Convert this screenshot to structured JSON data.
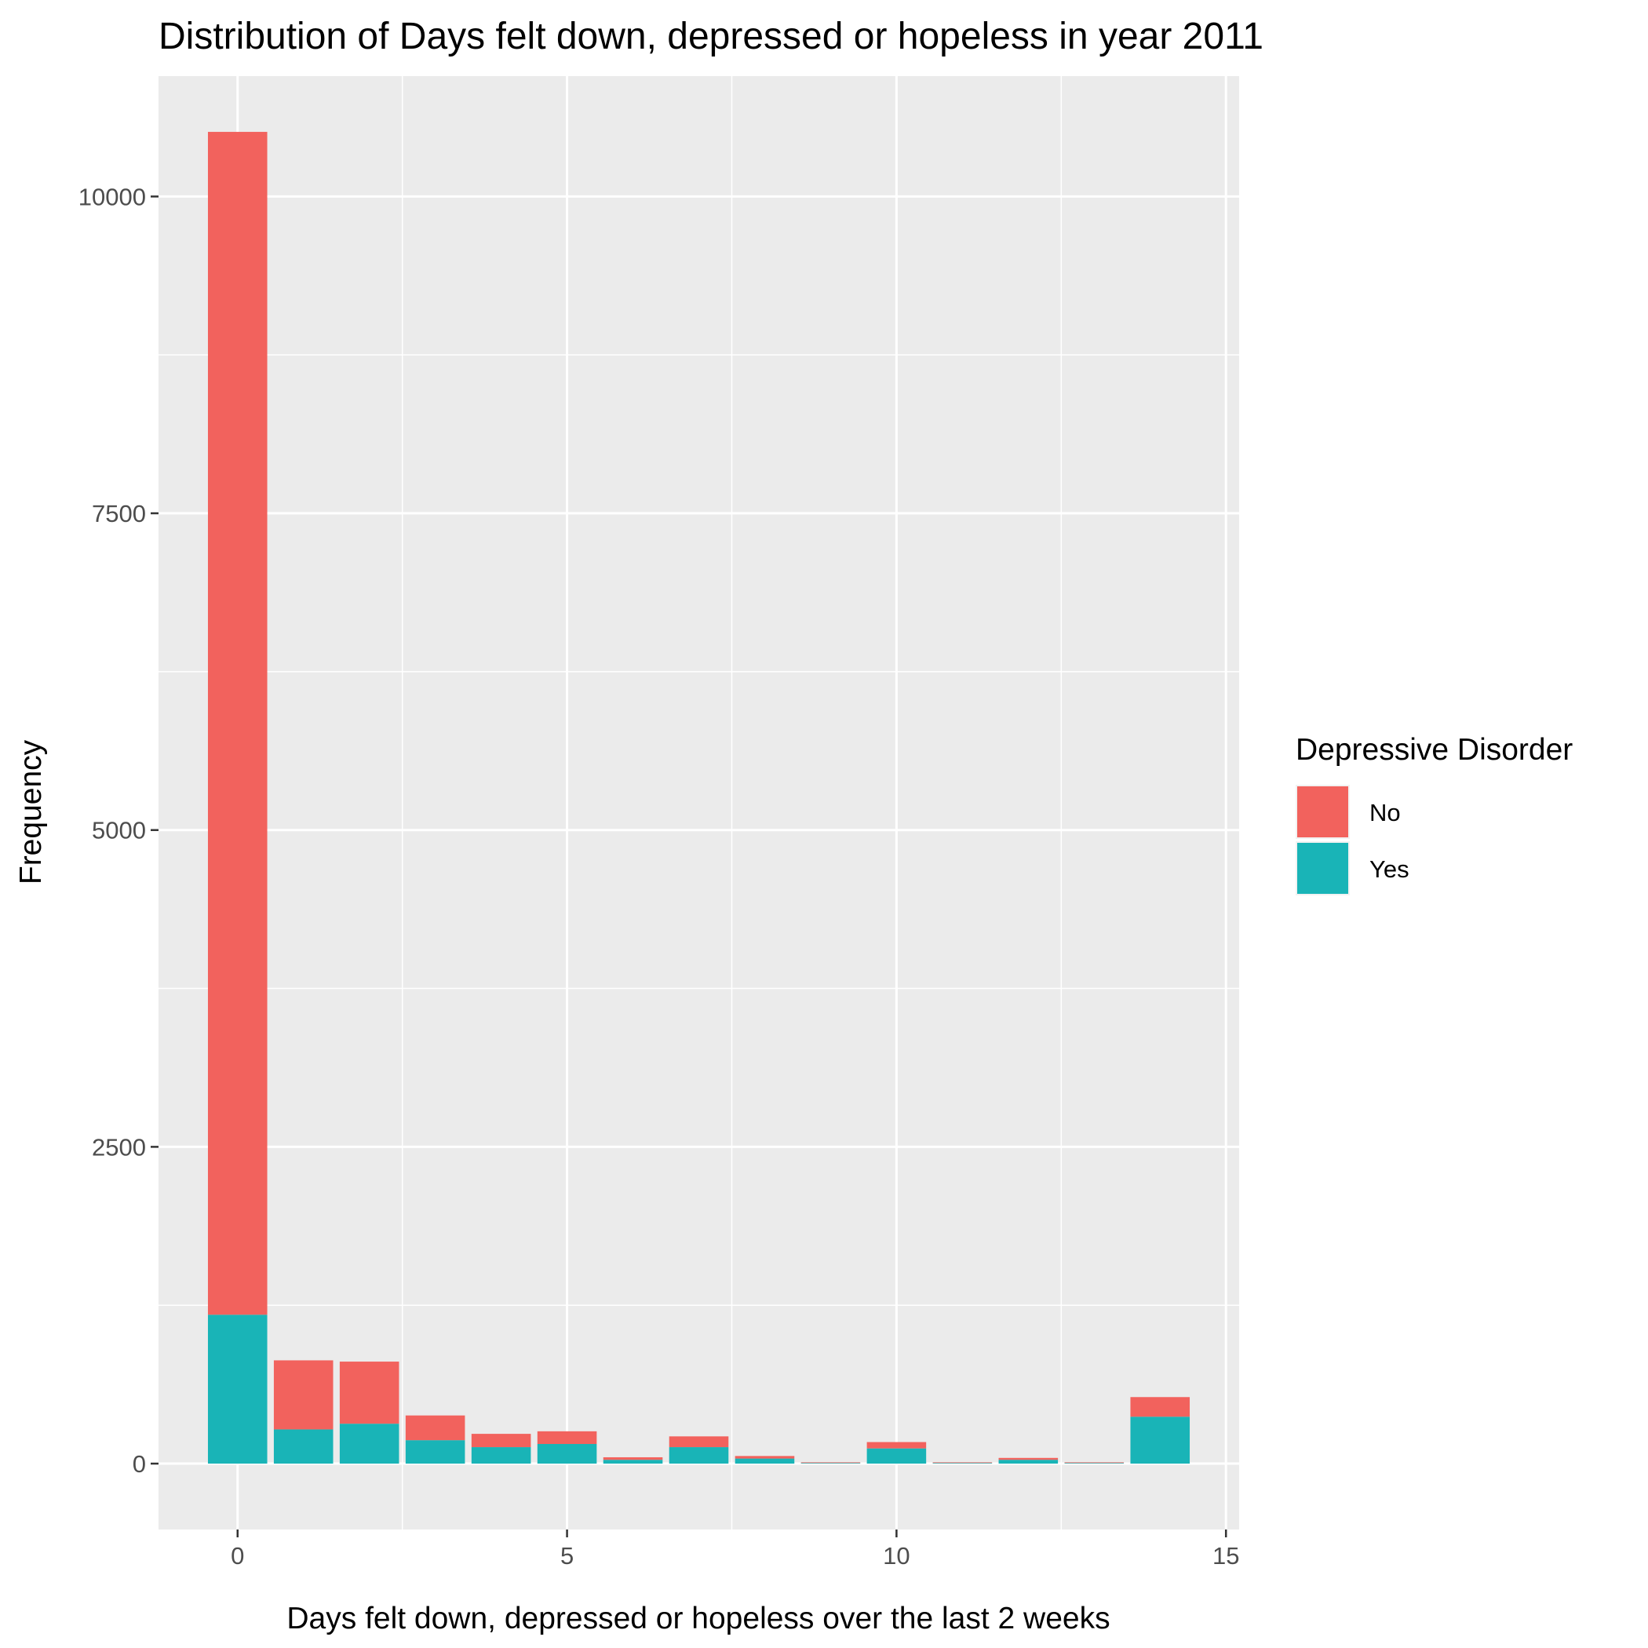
{
  "chart_data": {
    "type": "bar",
    "stacked": true,
    "title": "Distribution of Days felt down, depressed or hopeless in year 2011",
    "xlabel": "Days felt down, depressed or hopeless over the last 2 weeks",
    "ylabel": "Frequency",
    "x": [
      0,
      1,
      2,
      3,
      4,
      5,
      6,
      7,
      8,
      9,
      10,
      11,
      12,
      13,
      14
    ],
    "series": [
      {
        "name": "Yes",
        "color": "#19B4B7",
        "values": [
          1175,
          270,
          315,
          185,
          130,
          155,
          30,
          130,
          40,
          5,
          120,
          5,
          30,
          5,
          370
        ]
      },
      {
        "name": "No",
        "color": "#F2625D",
        "values": [
          9335,
          545,
          490,
          195,
          105,
          100,
          20,
          85,
          20,
          5,
          50,
          5,
          15,
          5,
          155
        ]
      }
    ],
    "xlim": [
      -1.2,
      15.2
    ],
    "ylim": [
      -520,
      10950
    ],
    "xticks": [
      0,
      5,
      10,
      15
    ],
    "yticks": [
      0,
      2500,
      5000,
      7500,
      10000
    ],
    "xtick_labels": [
      "0",
      "5",
      "10",
      "15"
    ],
    "ytick_labels": [
      "0",
      "2500",
      "5000",
      "7500",
      "10000"
    ],
    "grid": true,
    "legend": {
      "title": "Depressive Disorder",
      "position": "right",
      "entries": [
        {
          "label": "No",
          "color": "#F2625D"
        },
        {
          "label": "Yes",
          "color": "#19B4B7"
        }
      ]
    }
  }
}
